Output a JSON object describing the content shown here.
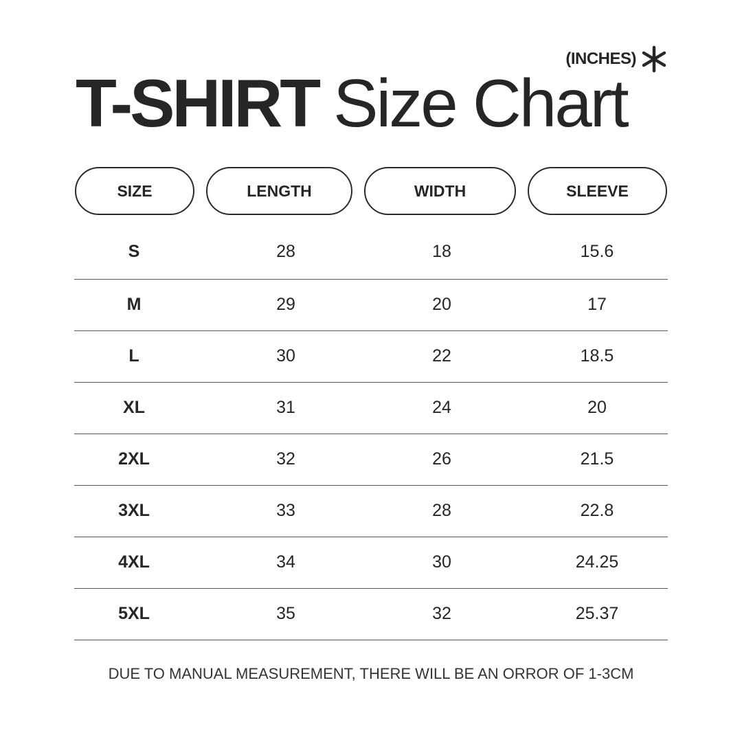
{
  "units_label": "(INCHES)",
  "title": {
    "bold": "T-SHIRT",
    "light": "Size Chart"
  },
  "headers": [
    "SIZE",
    "LENGTH",
    "WIDTH",
    "SLEEVE"
  ],
  "rows": [
    [
      "S",
      "28",
      "18",
      "15.6"
    ],
    [
      "M",
      "29",
      "20",
      "17"
    ],
    [
      "L",
      "30",
      "22",
      "18.5"
    ],
    [
      "XL",
      "31",
      "24",
      "20"
    ],
    [
      "2XL",
      "32",
      "26",
      "21.5"
    ],
    [
      "3XL",
      "33",
      "28",
      "22.8"
    ],
    [
      "4XL",
      "34",
      "30",
      "24.25"
    ],
    [
      "5XL",
      "35",
      "32",
      "25.37"
    ]
  ],
  "footer": "DUE TO MANUAL MEASUREMENT, THERE WILL BE AN ORROR OF 1-3CM",
  "colors": {
    "text": "#262626",
    "background": "#ffffff"
  }
}
